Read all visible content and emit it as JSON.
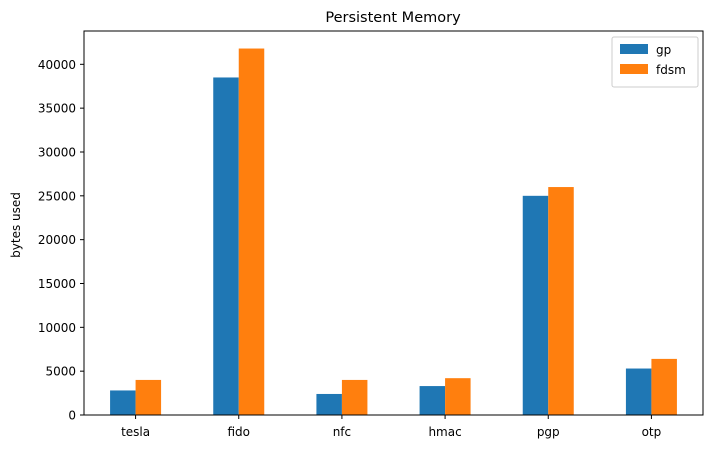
{
  "chart_data": {
    "type": "bar",
    "title": "Persistent Memory",
    "xlabel": "",
    "ylabel": "bytes used",
    "categories": [
      "tesla",
      "fido",
      "nfc",
      "hmac",
      "pgp",
      "otp"
    ],
    "series": [
      {
        "name": "gp",
        "color": "#1f77b4",
        "values": [
          2800,
          38500,
          2400,
          3300,
          25000,
          5300
        ]
      },
      {
        "name": "fdsm",
        "color": "#ff7f0e",
        "values": [
          4000,
          41800,
          4000,
          4200,
          26000,
          6400
        ]
      }
    ],
    "ylim": [
      0,
      43800
    ],
    "yticks": [
      0,
      5000,
      10000,
      15000,
      20000,
      25000,
      30000,
      35000,
      40000
    ],
    "grid": false,
    "legend_position": "top-right"
  }
}
